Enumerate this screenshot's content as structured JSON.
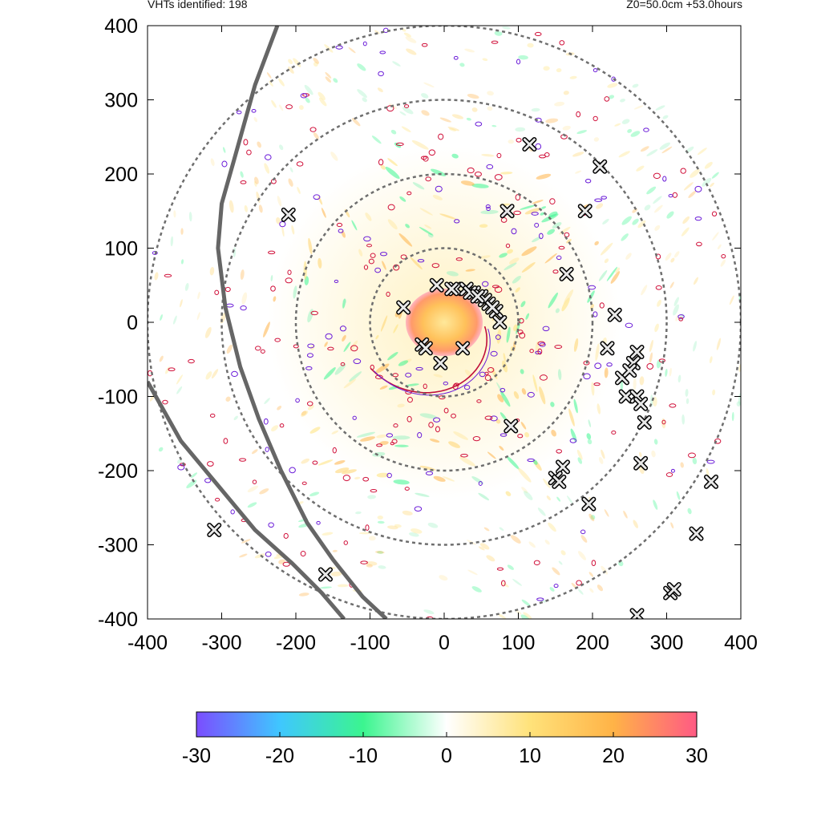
{
  "header": {
    "left_text": "VHTs identified: 198",
    "right_text": "Z0=50.0cm  +53.0hours"
  },
  "chart_data": {
    "type": "scatter",
    "title": "",
    "xlabel": "",
    "ylabel": "",
    "xlim": [
      -400,
      400
    ],
    "ylim": [
      -400,
      400
    ],
    "x_ticks": [
      -400,
      -300,
      -200,
      -100,
      0,
      100,
      200,
      300,
      400
    ],
    "y_ticks": [
      -400,
      -300,
      -200,
      -100,
      0,
      100,
      200,
      300,
      400
    ],
    "range_rings": [
      100,
      200,
      300,
      400
    ],
    "colorbar": {
      "min": -30,
      "max": 30,
      "ticks": [
        -30,
        -20,
        -10,
        0,
        10,
        20,
        30
      ],
      "colors": [
        "#7b4dff",
        "#3fc7ff",
        "#3bf58f",
        "#ffffff",
        "#ffe27a",
        "#ffb347",
        "#ff5a84"
      ]
    },
    "coastlines": [
      [
        [
          -225,
          400
        ],
        [
          -255,
          320
        ],
        [
          -283,
          220
        ],
        [
          -300,
          160
        ],
        [
          -305,
          100
        ],
        [
          -295,
          20
        ],
        [
          -275,
          -60
        ],
        [
          -250,
          -130
        ],
        [
          -220,
          -200
        ],
        [
          -185,
          -270
        ],
        [
          -150,
          -320
        ],
        [
          -110,
          -370
        ],
        [
          -78,
          -400
        ]
      ],
      [
        [
          -400,
          -80
        ],
        [
          -355,
          -160
        ],
        [
          -305,
          -220
        ],
        [
          -255,
          -280
        ],
        [
          -205,
          -325
        ],
        [
          -165,
          -365
        ],
        [
          -135,
          -400
        ]
      ]
    ],
    "vht_markers": {
      "x": [
        -55,
        -30,
        -25,
        25,
        -5,
        15,
        40,
        50,
        60,
        70,
        75,
        55,
        65,
        -10,
        10,
        30,
        35,
        45,
        240,
        190,
        210,
        165,
        115,
        85,
        230,
        220,
        260,
        255,
        250,
        245,
        260,
        265,
        270,
        160,
        150,
        155,
        195,
        265,
        305,
        310,
        360,
        340,
        260,
        -210,
        -160,
        -310,
        90
      ],
      "y": [
        20,
        -30,
        -35,
        -35,
        -55,
        45,
        40,
        35,
        25,
        15,
        0,
        30,
        20,
        50,
        45,
        45,
        40,
        35,
        -75,
        150,
        210,
        65,
        240,
        150,
        10,
        -35,
        -40,
        -55,
        -65,
        -100,
        -100,
        -110,
        -135,
        -195,
        -210,
        -215,
        -245,
        -190,
        -365,
        -360,
        -215,
        -285,
        -395,
        145,
        -340,
        -280,
        -140
      ]
    },
    "legend": "none",
    "grid": false
  }
}
